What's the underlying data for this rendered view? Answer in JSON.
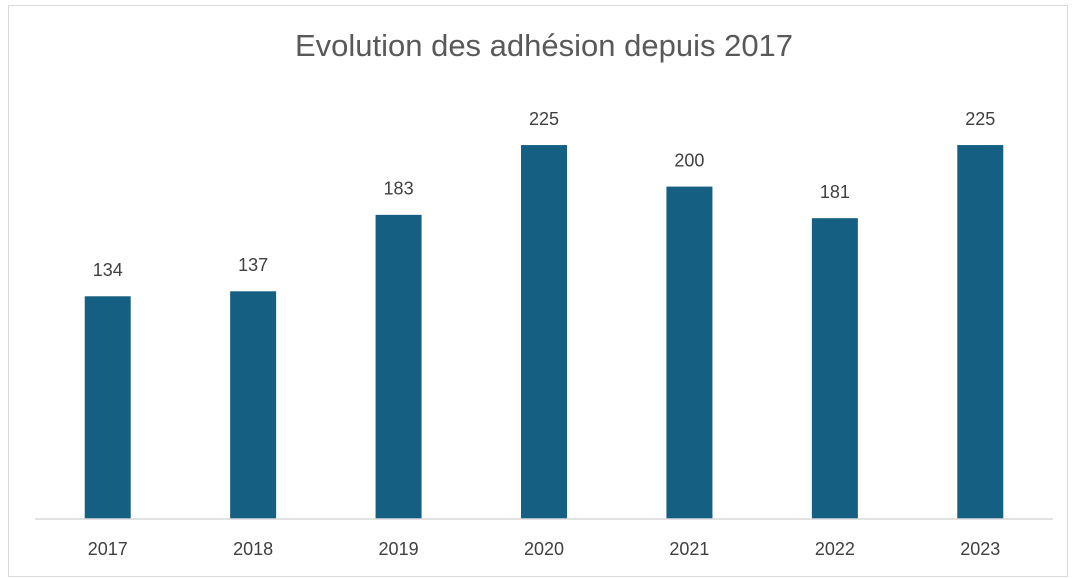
{
  "chart_data": {
    "type": "bar",
    "title": "Evolution des adhésion depuis 2017",
    "categories": [
      "2017",
      "2018",
      "2019",
      "2020",
      "2021",
      "2022",
      "2023"
    ],
    "values": [
      134,
      137,
      183,
      225,
      200,
      181,
      225
    ],
    "color": "#156082",
    "ylim": [
      0,
      250
    ]
  }
}
